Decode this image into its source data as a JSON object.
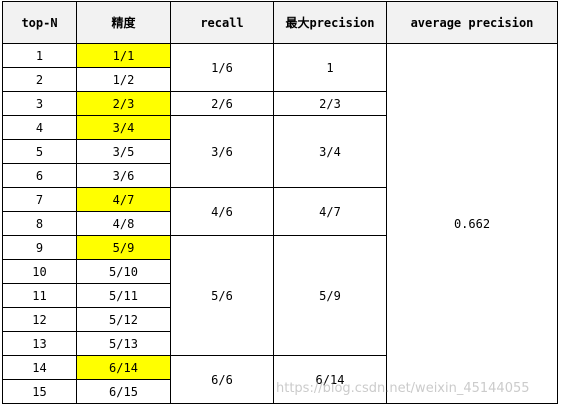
{
  "headers": {
    "topn": "top-N",
    "precision": "精度",
    "recall": "recall",
    "max_precision": "最大precision",
    "ap": "average precision"
  },
  "rows": [
    {
      "n": "1",
      "precision": "1/1",
      "highlight": true
    },
    {
      "n": "2",
      "precision": "1/2",
      "highlight": false
    },
    {
      "n": "3",
      "precision": "2/3",
      "highlight": true
    },
    {
      "n": "4",
      "precision": "3/4",
      "highlight": true
    },
    {
      "n": "5",
      "precision": "3/5",
      "highlight": false
    },
    {
      "n": "6",
      "precision": "3/6",
      "highlight": false
    },
    {
      "n": "7",
      "precision": "4/7",
      "highlight": true
    },
    {
      "n": "8",
      "precision": "4/8",
      "highlight": false
    },
    {
      "n": "9",
      "precision": "5/9",
      "highlight": true
    },
    {
      "n": "10",
      "precision": "5/10",
      "highlight": false
    },
    {
      "n": "11",
      "precision": "5/11",
      "highlight": false
    },
    {
      "n": "12",
      "precision": "5/12",
      "highlight": false
    },
    {
      "n": "13",
      "precision": "5/13",
      "highlight": false
    },
    {
      "n": "14",
      "precision": "6/14",
      "highlight": true
    },
    {
      "n": "15",
      "precision": "6/15",
      "highlight": false
    }
  ],
  "groups": [
    {
      "recall": "1/6",
      "max_precision": "1"
    },
    {
      "recall": "2/6",
      "max_precision": "2/3"
    },
    {
      "recall": "3/6",
      "max_precision": "3/4"
    },
    {
      "recall": "4/6",
      "max_precision": "4/7"
    },
    {
      "recall": "5/6",
      "max_precision": "5/9"
    },
    {
      "recall": "6/6",
      "max_precision": "6/14"
    }
  ],
  "average_precision": "0.662",
  "highlight_color": "#ffff00",
  "watermark": "https://blog.csdn.net/weixin_45144055"
}
